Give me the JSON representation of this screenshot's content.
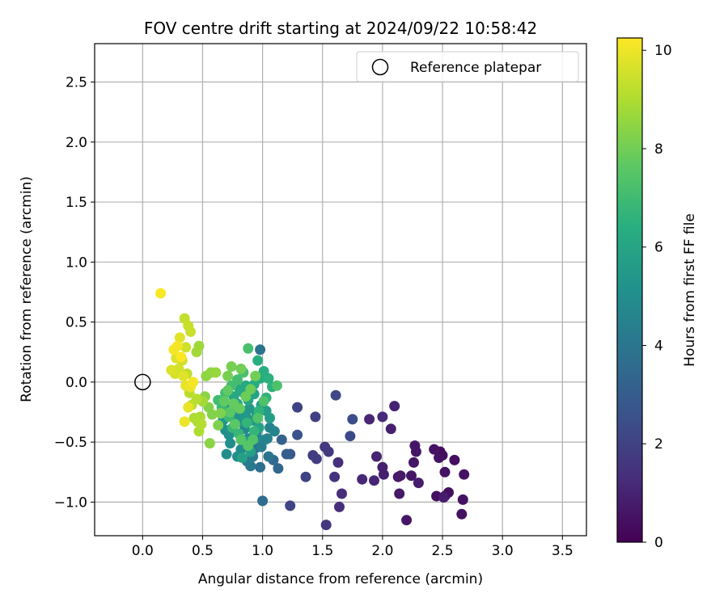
{
  "chart_data": {
    "type": "scatter",
    "title": "FOV centre drift starting at 2024/09/22 10:58:42",
    "xlabel": "Angular distance from reference (arcmin)",
    "ylabel": "Rotation from reference (arcmin)",
    "xlim": [
      -0.4,
      3.7
    ],
    "ylim": [
      -1.28,
      2.82
    ],
    "xticks": [
      0.0,
      0.5,
      1.0,
      1.5,
      2.0,
      2.5,
      3.0,
      3.5
    ],
    "xtick_labels": [
      "0.0",
      "0.5",
      "1.0",
      "1.5",
      "2.0",
      "2.5",
      "3.0",
      "3.5"
    ],
    "yticks": [
      -1.0,
      -0.5,
      0.0,
      0.5,
      1.0,
      1.5,
      2.0,
      2.5
    ],
    "ytick_labels": [
      "−1.0",
      "−0.5",
      "0.0",
      "0.5",
      "1.0",
      "1.5",
      "2.0",
      "2.5"
    ],
    "grid": true,
    "legend": {
      "location": "top-right",
      "entries": [
        {
          "label": "Reference platepar",
          "marker": "open-circle",
          "x": 0.0,
          "y": 0.0
        }
      ]
    },
    "colorbar": {
      "label": "Hours from first FF file",
      "colormap": "viridis",
      "range": [
        0,
        10.25
      ],
      "ticks": [
        0,
        2,
        4,
        6,
        8,
        10
      ],
      "tick_labels": [
        "0",
        "2",
        "4",
        "6",
        "8",
        "10"
      ]
    },
    "points": [
      [
        2.48,
        -0.58,
        0.3
      ],
      [
        2.52,
        -0.95,
        0.3
      ],
      [
        2.45,
        -0.95,
        0.4
      ],
      [
        2.55,
        -0.92,
        0.4
      ],
      [
        2.6,
        -0.65,
        0.4
      ],
      [
        2.5,
        -0.61,
        0.4
      ],
      [
        2.52,
        -0.75,
        0.5
      ],
      [
        2.47,
        -0.63,
        0.5
      ],
      [
        2.66,
        -1.1,
        0.5
      ],
      [
        2.67,
        -0.98,
        0.5
      ],
      [
        2.68,
        -0.77,
        0.5
      ],
      [
        2.43,
        -0.56,
        0.5
      ],
      [
        2.27,
        -0.53,
        0.6
      ],
      [
        2.26,
        -0.67,
        0.6
      ],
      [
        2.2,
        -1.15,
        0.6
      ],
      [
        2.24,
        -0.78,
        0.6
      ],
      [
        2.28,
        -0.58,
        0.6
      ],
      [
        2.15,
        -0.78,
        0.7
      ],
      [
        2.13,
        -0.79,
        0.7
      ],
      [
        2.14,
        -0.93,
        0.7
      ],
      [
        2.3,
        -0.84,
        0.8
      ],
      [
        2.51,
        -0.96,
        0.8
      ],
      [
        2.0,
        -0.71,
        0.9
      ],
      [
        2.01,
        -0.77,
        0.9
      ],
      [
        2.07,
        -0.39,
        0.9
      ],
      [
        2.1,
        -0.2,
        1.0
      ],
      [
        1.95,
        -0.62,
        1.0
      ],
      [
        1.93,
        -0.82,
        1.1
      ],
      [
        1.89,
        -0.31,
        1.1
      ],
      [
        1.83,
        -0.81,
        1.1
      ],
      [
        2.0,
        -0.29,
        1.2
      ],
      [
        1.66,
        -0.93,
        1.3
      ],
      [
        1.64,
        -1.04,
        1.3
      ],
      [
        1.63,
        -0.67,
        1.4
      ],
      [
        1.6,
        -0.79,
        1.5
      ],
      [
        1.53,
        -1.19,
        1.6
      ],
      [
        1.52,
        -0.54,
        1.7
      ],
      [
        1.55,
        -0.58,
        1.7
      ],
      [
        1.45,
        -0.64,
        1.8
      ],
      [
        1.42,
        -0.61,
        1.8
      ],
      [
        1.44,
        -0.29,
        1.9
      ],
      [
        1.36,
        -0.79,
        2.0
      ],
      [
        1.29,
        -0.21,
        2.0
      ],
      [
        1.23,
        -1.03,
        2.1
      ],
      [
        1.61,
        -0.11,
        2.2
      ],
      [
        1.73,
        -0.45,
        2.3
      ],
      [
        1.75,
        -0.31,
        2.4
      ],
      [
        1.29,
        -0.44,
        2.6
      ],
      [
        1.23,
        -0.6,
        2.8
      ],
      [
        1.2,
        -0.6,
        3.0
      ],
      [
        1.16,
        -0.48,
        3.2
      ],
      [
        1.13,
        -0.72,
        3.4
      ],
      [
        1.09,
        -0.65,
        3.5
      ],
      [
        1.0,
        -0.99,
        3.6
      ],
      [
        0.98,
        -0.71,
        3.7
      ],
      [
        0.94,
        -0.55,
        3.8
      ],
      [
        0.98,
        0.27,
        3.9
      ],
      [
        1.05,
        -0.62,
        4.0
      ],
      [
        0.9,
        -0.7,
        4.1
      ],
      [
        0.92,
        -0.62,
        4.2
      ],
      [
        0.87,
        -0.66,
        4.3
      ],
      [
        1.02,
        -0.48,
        4.4
      ],
      [
        0.99,
        -0.54,
        4.4
      ],
      [
        1.06,
        -0.38,
        4.5
      ],
      [
        1.1,
        -0.41,
        4.6
      ],
      [
        1.04,
        -0.47,
        4.6
      ],
      [
        0.96,
        -0.47,
        4.7
      ],
      [
        0.95,
        -0.42,
        4.7
      ],
      [
        0.88,
        -0.47,
        4.8
      ],
      [
        0.85,
        -0.39,
        4.8
      ],
      [
        0.82,
        -0.56,
        4.9
      ],
      [
        0.79,
        -0.62,
        4.9
      ],
      [
        0.7,
        -0.6,
        5.0
      ],
      [
        0.73,
        -0.51,
        5.0
      ],
      [
        0.72,
        -0.44,
        5.1
      ],
      [
        0.69,
        -0.4,
        5.1
      ],
      [
        0.67,
        -0.32,
        5.2
      ],
      [
        0.74,
        -0.22,
        5.2
      ],
      [
        0.78,
        -0.27,
        5.3
      ],
      [
        0.8,
        -0.33,
        5.3
      ],
      [
        0.86,
        -0.28,
        5.4
      ],
      [
        0.89,
        -0.22,
        5.4
      ],
      [
        0.92,
        -0.32,
        5.5
      ],
      [
        0.95,
        -0.27,
        5.5
      ],
      [
        0.99,
        -0.19,
        5.6
      ],
      [
        1.03,
        -0.24,
        5.6
      ],
      [
        1.06,
        -0.3,
        5.7
      ],
      [
        0.85,
        -0.49,
        5.7
      ],
      [
        0.83,
        -0.63,
        5.8
      ],
      [
        0.9,
        -0.58,
        5.8
      ],
      [
        0.97,
        -0.38,
        5.9
      ],
      [
        0.93,
        -0.1,
        5.9
      ],
      [
        0.88,
        -0.15,
        6.0
      ],
      [
        0.84,
        -0.09,
        6.0
      ],
      [
        0.79,
        -0.18,
        6.1
      ],
      [
        0.76,
        -0.12,
        6.1
      ],
      [
        0.81,
        -0.06,
        6.2
      ],
      [
        0.86,
        -0.03,
        6.2
      ],
      [
        0.93,
        -0.02,
        6.3
      ],
      [
        0.98,
        0.03,
        6.3
      ],
      [
        1.01,
        0.09,
        6.4
      ],
      [
        0.96,
        0.18,
        6.4
      ],
      [
        1.05,
        0.03,
        6.5
      ],
      [
        1.08,
        -0.04,
        6.5
      ],
      [
        1.03,
        -0.13,
        6.6
      ],
      [
        0.97,
        -0.24,
        6.6
      ],
      [
        0.93,
        -0.41,
        6.7
      ],
      [
        0.87,
        -0.34,
        6.7
      ],
      [
        0.8,
        -0.43,
        6.8
      ],
      [
        0.75,
        -0.38,
        6.8
      ],
      [
        0.72,
        -0.29,
        6.9
      ],
      [
        0.66,
        -0.21,
        6.9
      ],
      [
        0.63,
        -0.15,
        7.0
      ],
      [
        0.69,
        -0.09,
        7.0
      ],
      [
        0.74,
        -0.03,
        7.1
      ],
      [
        0.79,
        0.02,
        7.1
      ],
      [
        0.84,
        0.08,
        7.2
      ],
      [
        0.88,
        0.28,
        7.2
      ],
      [
        1.12,
        -0.03,
        7.3
      ],
      [
        1.01,
        -0.16,
        7.3
      ],
      [
        0.96,
        -0.3,
        7.4
      ],
      [
        0.92,
        -0.48,
        7.4
      ],
      [
        0.88,
        -0.53,
        7.5
      ],
      [
        0.82,
        -0.48,
        7.5
      ],
      [
        0.77,
        -0.35,
        7.6
      ],
      [
        0.73,
        -0.25,
        7.6
      ],
      [
        0.68,
        -0.16,
        7.7
      ],
      [
        0.71,
        -0.07,
        7.7
      ],
      [
        0.76,
        -0.18,
        7.8
      ],
      [
        0.81,
        -0.22,
        7.8
      ],
      [
        0.86,
        -0.12,
        7.9
      ],
      [
        0.9,
        -0.06,
        7.9
      ],
      [
        0.94,
        0.05,
        8.0
      ],
      [
        0.82,
        0.11,
        8.0
      ],
      [
        0.74,
        0.13,
        8.1
      ],
      [
        0.71,
        0.05,
        8.1
      ],
      [
        0.65,
        -0.26,
        8.2
      ],
      [
        0.63,
        -0.36,
        8.2
      ],
      [
        0.58,
        -0.27,
        8.3
      ],
      [
        0.55,
        -0.21,
        8.3
      ],
      [
        0.52,
        -0.12,
        8.4
      ],
      [
        0.56,
        -0.51,
        8.4
      ],
      [
        0.53,
        0.05,
        8.5
      ],
      [
        0.57,
        0.08,
        8.5
      ],
      [
        0.61,
        0.08,
        8.6
      ],
      [
        0.47,
        0.3,
        8.7
      ],
      [
        0.45,
        0.25,
        8.8
      ],
      [
        0.5,
        -0.16,
        8.8
      ],
      [
        0.48,
        -0.29,
        8.9
      ],
      [
        0.46,
        -0.33,
        8.9
      ],
      [
        0.43,
        -0.3,
        9.0
      ],
      [
        0.47,
        -0.41,
        9.0
      ],
      [
        0.49,
        -0.35,
        9.1
      ],
      [
        0.45,
        -0.14,
        9.1
      ],
      [
        0.41,
        -0.19,
        9.2
      ],
      [
        0.39,
        -0.09,
        9.2
      ],
      [
        0.37,
        0.07,
        9.3
      ],
      [
        0.35,
        0.53,
        9.3
      ],
      [
        0.38,
        0.47,
        9.4
      ],
      [
        0.4,
        0.42,
        9.4
      ],
      [
        0.36,
        0.29,
        9.5
      ],
      [
        0.33,
        0.18,
        9.5
      ],
      [
        0.3,
        0.11,
        9.6
      ],
      [
        0.27,
        0.07,
        9.6
      ],
      [
        0.24,
        0.1,
        9.7
      ],
      [
        0.28,
        0.2,
        9.7
      ],
      [
        0.31,
        0.37,
        9.8
      ],
      [
        0.34,
        0.05,
        9.8
      ],
      [
        0.36,
        -0.03,
        9.9
      ],
      [
        0.38,
        -0.21,
        9.9
      ],
      [
        0.35,
        -0.33,
        10.0
      ],
      [
        0.4,
        -0.04,
        10.0
      ],
      [
        0.42,
        0.0,
        10.1
      ],
      [
        0.26,
        0.27,
        10.1
      ],
      [
        0.29,
        0.3,
        10.1
      ],
      [
        0.32,
        0.21,
        10.2
      ],
      [
        0.15,
        0.74,
        10.2
      ]
    ]
  }
}
